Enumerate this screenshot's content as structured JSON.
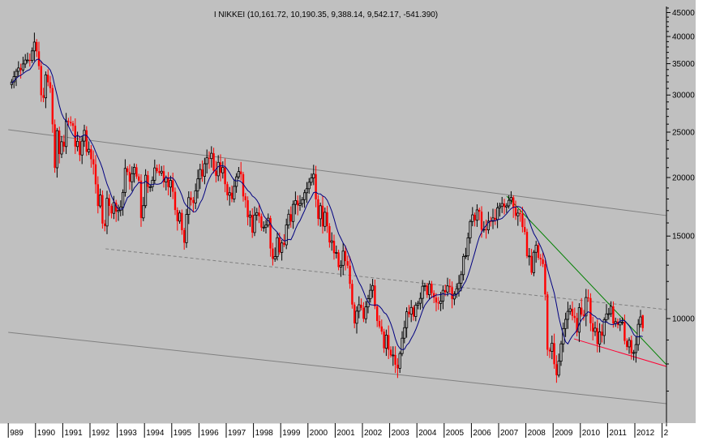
{
  "chart_data": {
    "type": "candlestick",
    "title": "I NIKKEI (10,161.72, 10,190.35, 9,388.14, 9,542.17, -541.390)",
    "scale": "log",
    "ylim": [
      6000,
      46500
    ],
    "xlim": [
      1989.0,
      2013.2
    ],
    "y_ticks": [
      10000,
      15000,
      20000,
      25000,
      30000,
      35000,
      40000,
      45000
    ],
    "x_tick_labels": [
      "989",
      "1990",
      "1991",
      "1992",
      "1993",
      "1994",
      "1995",
      "1996",
      "1997",
      "1998",
      "1999",
      "2000",
      "2001",
      "2002",
      "2003",
      "2004",
      "2005",
      "2006",
      "2007",
      "2008",
      "2009",
      "2010",
      "2011",
      "2012",
      "2"
    ],
    "grid": false,
    "start": "1989-01",
    "frequency": "monthly",
    "closes": [
      31580,
      31990,
      32840,
      33710,
      34270,
      33930,
      34950,
      35630,
      35640,
      35550,
      37270,
      38916,
      37190,
      34590,
      29980,
      29590,
      33130,
      31940,
      31040,
      25980,
      20980,
      25190,
      22450,
      23850,
      23290,
      26410,
      26290,
      26110,
      25790,
      23290,
      23900,
      22340,
      23920,
      25220,
      22690,
      22980,
      21880,
      21340,
      19350,
      17390,
      18350,
      15950,
      15760,
      18060,
      17400,
      16770,
      17680,
      16920,
      17020,
      17300,
      18590,
      20920,
      20550,
      19590,
      20380,
      21030,
      20100,
      19700,
      16400,
      17420,
      20230,
      19100,
      19110,
      19730,
      20970,
      20640,
      20450,
      20630,
      19560,
      19990,
      19080,
      19720,
      18650,
      17050,
      16140,
      16800,
      15440,
      14520,
      16680,
      18120,
      17910,
      17650,
      18740,
      19870,
      20810,
      20120,
      21400,
      22040,
      21950,
      22530,
      20690,
      20170,
      21550,
      20470,
      21020,
      19360,
      18330,
      18560,
      18000,
      19150,
      20070,
      20600,
      20330,
      18230,
      17890,
      16460,
      16630,
      15260,
      16630,
      16830,
      16530,
      15640,
      15670,
      15830,
      16380,
      14110,
      13410,
      13560,
      14880,
      13840,
      14500,
      14370,
      15840,
      16700,
      16110,
      17530,
      17860,
      17440,
      17600,
      17940,
      18560,
      18930,
      19540,
      19960,
      20340,
      17970,
      16330,
      17410,
      15730,
      16860,
      15750,
      14540,
      14650,
      13790,
      13840,
      12880,
      12990,
      13930,
      13260,
      12970,
      11860,
      10710,
      9770,
      10370,
      10700,
      10540,
      9990,
      10590,
      11020,
      11490,
      11760,
      10620,
      9880,
      9620,
      9380,
      8640,
      9220,
      8580,
      8340,
      8360,
      7970,
      7830,
      8420,
      9080,
      9560,
      10340,
      10220,
      10560,
      10100,
      10680,
      10780,
      11040,
      11720,
      11760,
      11240,
      11860,
      11330,
      11080,
      10820,
      10770,
      10900,
      11490,
      11390,
      11740,
      11670,
      11010,
      11280,
      11580,
      11900,
      12410,
      13570,
      13610,
      14870,
      16110,
      16650,
      16210,
      17060,
      16910,
      15470,
      15510,
      15460,
      16140,
      16130,
      16400,
      16270,
      17230,
      17380,
      17600,
      17290,
      17400,
      17880,
      18140,
      17250,
      16570,
      16790,
      16740,
      15680,
      15310,
      13590,
      13600,
      12530,
      13850,
      14340,
      13480,
      13380,
      13070,
      11260,
      8580,
      8510,
      8860,
      7990,
      7570,
      8110,
      8830,
      9520,
      9960,
      10360,
      10490,
      10130,
      10030,
      9350,
      10550,
      10200,
      10130,
      11090,
      11060,
      9770,
      9380,
      9540,
      8820,
      9370,
      9200,
      9940,
      10230,
      10240,
      10620,
      9760,
      9850,
      9690,
      9820,
      9830,
      8960,
      8700,
      8990,
      8430,
      8460,
      8800,
      9720,
      10080,
      9542.17
    ],
    "last_bar": {
      "open": 10161.72,
      "high": 10190.35,
      "low": 9388.14,
      "close": 9542.17,
      "change": -541.39
    },
    "trendlines": [
      {
        "style": "solid",
        "color": "#808080",
        "from": [
          1989.0,
          25300
        ],
        "to": [
          2013.16,
          16590
        ]
      },
      {
        "style": "dashed",
        "color": "#808080",
        "from": [
          1992.57,
          14090
        ],
        "to": [
          2013.16,
          10450
        ]
      },
      {
        "style": "solid",
        "color": "#808080",
        "from": [
          1989.0,
          9345
        ],
        "to": [
          2013.16,
          6580
        ]
      },
      {
        "style": "solid",
        "color": "#008000",
        "from": [
          2007.3,
          18250
        ],
        "to": [
          2013.16,
          7970
        ]
      },
      {
        "style": "solid",
        "color": "#ff0033",
        "from": [
          2009.77,
          9050
        ],
        "to": [
          2013.16,
          7900
        ]
      }
    ],
    "colors": {
      "up": "#000000",
      "down": "#ff0000",
      "moving_average": "#000080",
      "background": "#c0c0c0"
    }
  }
}
